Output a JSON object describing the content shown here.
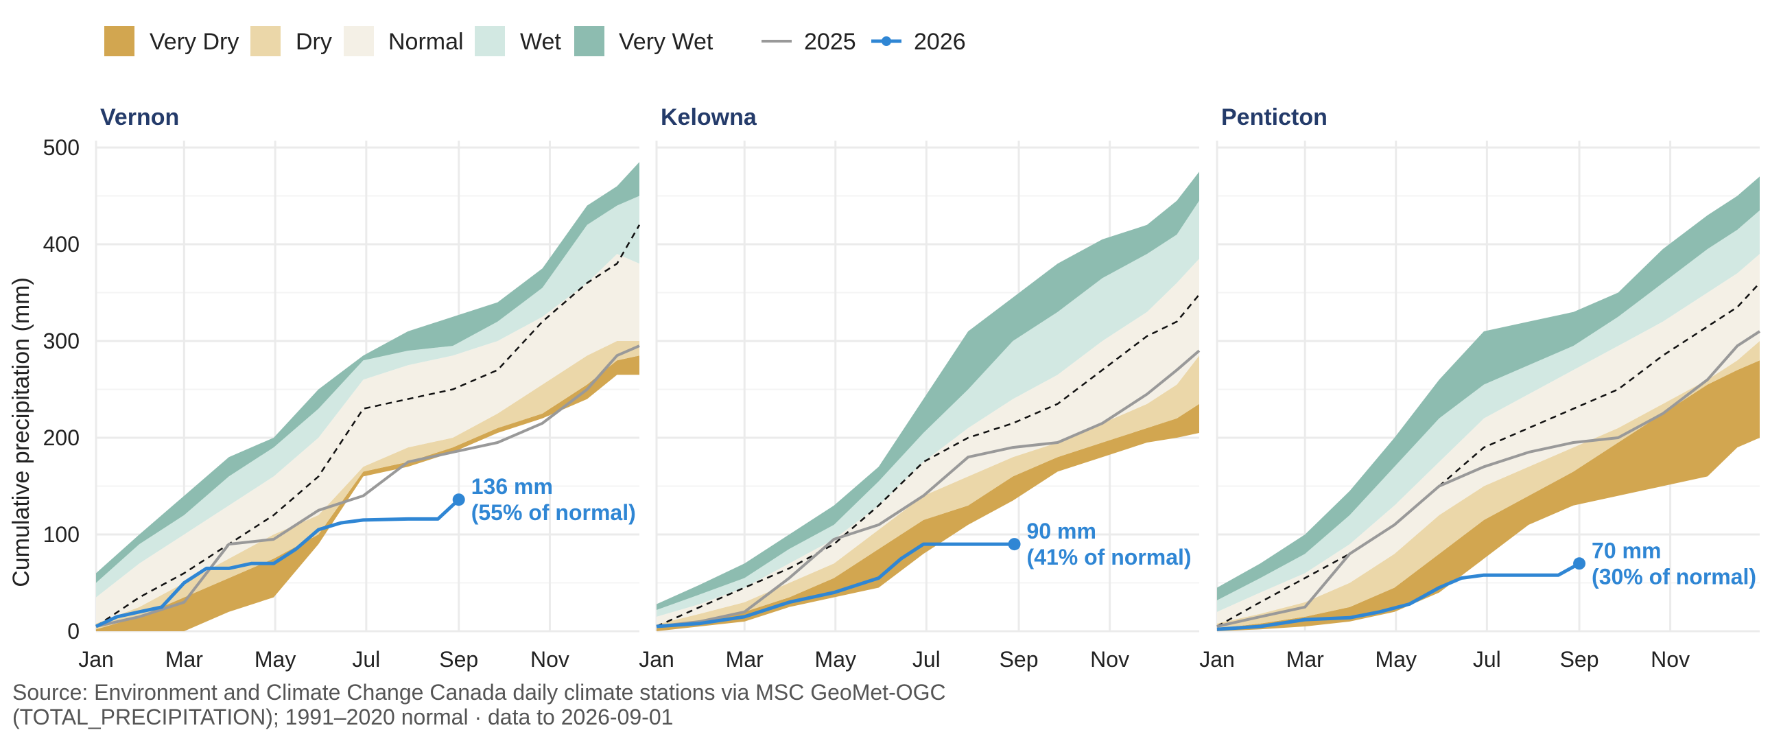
{
  "colors": {
    "very_dry": "#d2a650",
    "dry": "#ebd7a9",
    "normal": "#f4f0e6",
    "wet": "#d2e8e2",
    "very_wet": "#8dbcb0",
    "line_2025": "#999999",
    "line_2026": "#2f86d4",
    "panel_title": "#243b6a",
    "grid": "#ebebeb"
  },
  "legend": {
    "bands": [
      "Very Dry",
      "Dry",
      "Normal",
      "Wet",
      "Very Wet"
    ],
    "lines": [
      "2025",
      "2026"
    ]
  },
  "caption": {
    "line1": "Source: Environment and Climate Change Canada daily climate stations via MSC GeoMet-OGC",
    "line2": "(TOTAL_PRECIPITATION); 1991–2020 normal · data to 2026-09-01"
  },
  "chart_data": [
    {
      "type": "area",
      "title": "Vernon",
      "ylabel": "Cumulative precipitation (mm)",
      "ylim": [
        0,
        500
      ],
      "yticks": [
        0,
        100,
        200,
        300,
        400,
        500
      ],
      "xlim": [
        1,
        365
      ],
      "xticks": [
        {
          "day": 1,
          "label": "Jan"
        },
        {
          "day": 60,
          "label": "Mar"
        },
        {
          "day": 121,
          "label": "May"
        },
        {
          "day": 182,
          "label": "Jul"
        },
        {
          "day": 244,
          "label": "Sep"
        },
        {
          "day": 305,
          "label": "Nov"
        }
      ],
      "x": [
        1,
        30,
        60,
        90,
        120,
        150,
        180,
        210,
        240,
        270,
        300,
        330,
        350,
        365
      ],
      "bands": {
        "p0": [
          0,
          0,
          0,
          20,
          35,
          90,
          160,
          170,
          185,
          205,
          220,
          240,
          265,
          265
        ],
        "p10": [
          2,
          15,
          35,
          55,
          75,
          100,
          165,
          175,
          190,
          210,
          225,
          255,
          280,
          285
        ],
        "p30": [
          8,
          25,
          50,
          75,
          100,
          120,
          170,
          190,
          200,
          225,
          255,
          285,
          300,
          300
        ],
        "p70": [
          35,
          70,
          100,
          130,
          160,
          200,
          260,
          275,
          285,
          300,
          325,
          360,
          390,
          380
        ],
        "p90": [
          50,
          90,
          120,
          160,
          190,
          230,
          280,
          290,
          295,
          320,
          355,
          420,
          440,
          450
        ],
        "p100": [
          60,
          100,
          140,
          180,
          200,
          250,
          285,
          310,
          325,
          340,
          375,
          440,
          460,
          485
        ]
      },
      "normal": [
        5,
        35,
        60,
        90,
        120,
        160,
        230,
        240,
        250,
        270,
        320,
        360,
        380,
        420
      ],
      "series": [
        {
          "name": "2025",
          "x": [
            1,
            30,
            60,
            90,
            120,
            150,
            180,
            210,
            240,
            270,
            300,
            330,
            350,
            365
          ],
          "values": [
            5,
            15,
            30,
            90,
            95,
            125,
            140,
            175,
            185,
            195,
            215,
            250,
            285,
            295
          ]
        },
        {
          "name": "2026",
          "x": [
            1,
            15,
            30,
            45,
            60,
            75,
            90,
            105,
            120,
            135,
            150,
            165,
            180,
            210,
            230,
            244
          ],
          "values": [
            5,
            15,
            20,
            25,
            50,
            65,
            65,
            70,
            70,
            85,
            105,
            112,
            115,
            116,
            116,
            136
          ]
        }
      ],
      "annotation": {
        "day": 244,
        "value": 136,
        "label": "136 mm",
        "sublabel": "(55% of normal)"
      }
    },
    {
      "type": "area",
      "title": "Kelowna",
      "ylabel": "Cumulative precipitation (mm)",
      "ylim": [
        0,
        500
      ],
      "yticks": [
        0,
        100,
        200,
        300,
        400,
        500
      ],
      "xlim": [
        1,
        365
      ],
      "xticks": [
        {
          "day": 1,
          "label": "Jan"
        },
        {
          "day": 60,
          "label": "Mar"
        },
        {
          "day": 121,
          "label": "May"
        },
        {
          "day": 182,
          "label": "Jul"
        },
        {
          "day": 244,
          "label": "Sep"
        },
        {
          "day": 305,
          "label": "Nov"
        }
      ],
      "x": [
        1,
        30,
        60,
        90,
        120,
        150,
        180,
        210,
        240,
        270,
        300,
        330,
        350,
        365
      ],
      "bands": {
        "p0": [
          0,
          5,
          10,
          25,
          35,
          45,
          80,
          110,
          135,
          165,
          180,
          195,
          200,
          205
        ],
        "p10": [
          3,
          10,
          20,
          35,
          55,
          85,
          115,
          130,
          160,
          180,
          195,
          210,
          220,
          235
        ],
        "p30": [
          7,
          18,
          30,
          50,
          70,
          105,
          140,
          160,
          180,
          195,
          215,
          235,
          255,
          285
        ],
        "p70": [
          15,
          28,
          45,
          70,
          95,
          130,
          175,
          210,
          240,
          265,
          300,
          330,
          360,
          385
        ],
        "p90": [
          22,
          38,
          55,
          85,
          110,
          155,
          205,
          250,
          300,
          330,
          365,
          390,
          410,
          445
        ],
        "p100": [
          28,
          48,
          70,
          100,
          130,
          170,
          240,
          310,
          345,
          380,
          405,
          420,
          445,
          475
        ]
      },
      "normal": [
        5,
        25,
        45,
        65,
        90,
        130,
        175,
        200,
        215,
        235,
        270,
        305,
        320,
        348
      ],
      "series": [
        {
          "name": "2025",
          "x": [
            1,
            30,
            60,
            90,
            120,
            150,
            180,
            210,
            240,
            270,
            300,
            330,
            350,
            365
          ],
          "values": [
            5,
            10,
            20,
            55,
            95,
            110,
            140,
            180,
            190,
            195,
            215,
            245,
            270,
            290
          ]
        },
        {
          "name": "2026",
          "x": [
            1,
            30,
            60,
            90,
            120,
            150,
            165,
            180,
            210,
            230,
            241
          ],
          "values": [
            5,
            8,
            15,
            30,
            40,
            55,
            75,
            90,
            90,
            90,
            90
          ]
        }
      ],
      "annotation": {
        "day": 241,
        "value": 90,
        "label": "90 mm",
        "sublabel": "(41% of normal)"
      }
    },
    {
      "type": "area",
      "title": "Penticton",
      "ylabel": "Cumulative precipitation (mm)",
      "ylim": [
        0,
        500
      ],
      "yticks": [
        0,
        100,
        200,
        300,
        400,
        500
      ],
      "xlim": [
        1,
        365
      ],
      "xticks": [
        {
          "day": 1,
          "label": "Jan"
        },
        {
          "day": 60,
          "label": "Mar"
        },
        {
          "day": 121,
          "label": "May"
        },
        {
          "day": 182,
          "label": "Jul"
        },
        {
          "day": 244,
          "label": "Sep"
        },
        {
          "day": 305,
          "label": "Nov"
        }
      ],
      "x": [
        1,
        30,
        60,
        90,
        120,
        150,
        180,
        210,
        240,
        270,
        300,
        330,
        350,
        365
      ],
      "bands": {
        "p0": [
          0,
          2,
          5,
          10,
          20,
          40,
          75,
          110,
          130,
          140,
          150,
          160,
          190,
          200
        ],
        "p10": [
          3,
          8,
          15,
          25,
          45,
          80,
          115,
          140,
          165,
          195,
          225,
          255,
          270,
          280
        ],
        "p30": [
          8,
          18,
          30,
          50,
          80,
          120,
          150,
          170,
          190,
          210,
          235,
          260,
          280,
          300
        ],
        "p70": [
          20,
          40,
          60,
          90,
          130,
          175,
          220,
          245,
          270,
          295,
          320,
          350,
          370,
          390
        ],
        "p90": [
          32,
          55,
          80,
          120,
          170,
          220,
          255,
          275,
          295,
          325,
          360,
          395,
          415,
          435
        ],
        "p100": [
          45,
          70,
          100,
          145,
          200,
          260,
          310,
          320,
          330,
          350,
          395,
          430,
          450,
          470
        ]
      },
      "normal": [
        5,
        30,
        55,
        80,
        110,
        150,
        190,
        210,
        230,
        250,
        285,
        315,
        335,
        360
      ],
      "series": [
        {
          "name": "2025",
          "x": [
            1,
            30,
            60,
            90,
            120,
            150,
            180,
            210,
            240,
            270,
            300,
            330,
            350,
            365
          ],
          "values": [
            5,
            15,
            25,
            80,
            110,
            150,
            170,
            185,
            195,
            200,
            225,
            260,
            295,
            310
          ]
        },
        {
          "name": "2026",
          "x": [
            1,
            30,
            60,
            90,
            110,
            130,
            150,
            165,
            180,
            210,
            230,
            244
          ],
          "values": [
            2,
            5,
            12,
            14,
            20,
            28,
            45,
            55,
            58,
            58,
            58,
            70
          ]
        }
      ],
      "annotation": {
        "day": 244,
        "value": 70,
        "label": "70 mm",
        "sublabel": "(30% of normal)"
      }
    }
  ]
}
